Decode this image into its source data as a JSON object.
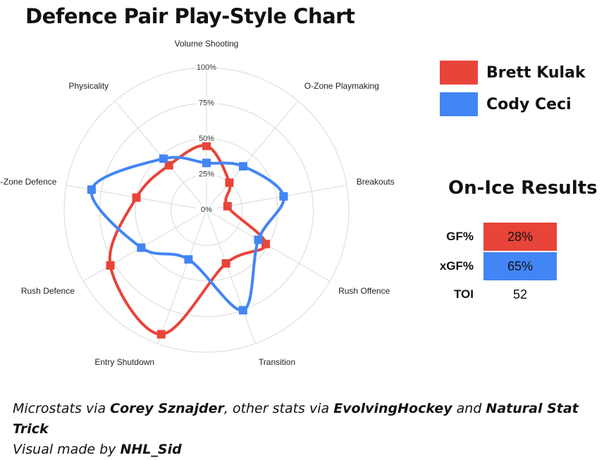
{
  "title": "Defence Pair Play-Style Chart",
  "chart_data": {
    "type": "radar",
    "axes": [
      "Volume Shooting",
      "O-Zone Playmaking",
      "Breakouts",
      "Rush Offence",
      "Transition",
      "Entry Shutdown",
      "Rush Defence",
      "In-Zone Defence",
      "Physicality"
    ],
    "rlim": [
      0,
      100
    ],
    "ticks": [
      "0%",
      "25%",
      "50%",
      "75%",
      "100%"
    ],
    "tick_values": [
      0,
      25,
      50,
      75,
      100
    ],
    "grid": true,
    "series": [
      {
        "name": "Brett Kulak",
        "color": "#e8443a",
        "values": [
          45,
          25,
          15,
          48,
          40,
          93,
          78,
          50,
          41
        ]
      },
      {
        "name": "Cody Ceci",
        "color": "#4285f4",
        "values": [
          33,
          40,
          55,
          42,
          75,
          37,
          53,
          82,
          47
        ]
      }
    ]
  },
  "legend": [
    {
      "label": "Brett Kulak",
      "color": "#e8443a"
    },
    {
      "label": "Cody Ceci",
      "color": "#4285f4"
    }
  ],
  "results": {
    "title": "On-Ice Results",
    "rows": [
      {
        "label": "GF%",
        "value": "28%",
        "color": "#e8443a"
      },
      {
        "label": "xGF%",
        "value": "65%",
        "color": "#4285f4"
      },
      {
        "label": "TOI",
        "value": "52",
        "color": ""
      }
    ]
  },
  "credits": {
    "line1_pre": "Microstats via ",
    "line1_b1": "Corey Sznajder",
    "line1_mid": ", other stats via ",
    "line1_b2": "EvolvingHockey",
    "line1_and": " and ",
    "line1_b3": "Natural Stat Trick",
    "line2_pre": "Visual made by ",
    "line2_b": "NHL_Sid"
  }
}
